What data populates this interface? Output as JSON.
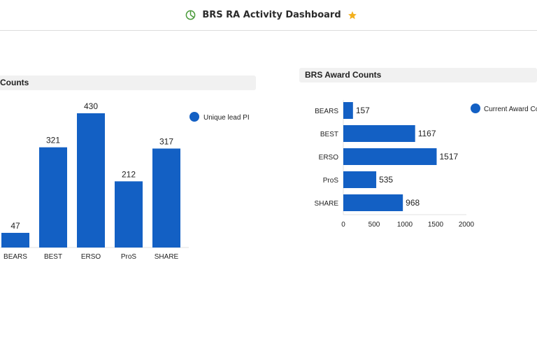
{
  "header": {
    "title": "BRS RA Activity Dashboard",
    "icon": "pie-chart-icon",
    "favorite_icon": "star-icon",
    "accent_color": "#4a9a3a",
    "star_color": "#f2b01e"
  },
  "chart_data": [
    {
      "type": "bar",
      "orientation": "vertical",
      "title": "Counts",
      "categories": [
        "BEARS",
        "BEST",
        "ERSO",
        "ProS",
        "SHARE"
      ],
      "series": [
        {
          "name": "Unique lead PI",
          "values": [
            47,
            321,
            430,
            212,
            317
          ],
          "color": "#1360c4"
        }
      ],
      "ylim": [
        0,
        430
      ],
      "grid": false,
      "legend": "top-right"
    },
    {
      "type": "bar",
      "orientation": "horizontal",
      "title": "BRS Award Counts",
      "categories": [
        "BEARS",
        "BEST",
        "ERSO",
        "ProS",
        "SHARE"
      ],
      "series": [
        {
          "name": "Current Award Cou",
          "values": [
            157,
            1167,
            1517,
            535,
            968
          ],
          "color": "#1360c4"
        }
      ],
      "xlim": [
        0,
        2000
      ],
      "xticks": [
        "0",
        "500",
        "1000",
        "1500",
        "2000"
      ],
      "grid": false,
      "legend": "top-right"
    }
  ]
}
